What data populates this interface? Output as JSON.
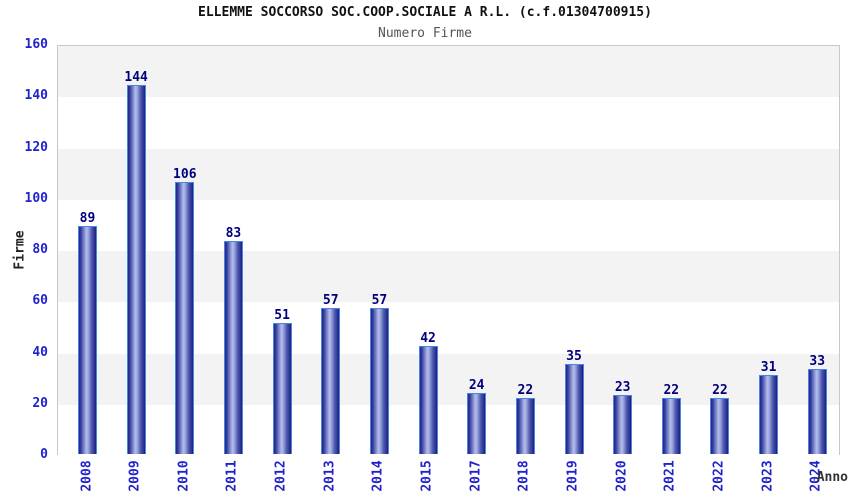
{
  "chart_data": {
    "type": "bar",
    "title": "ELLEMME SOCCORSO SOC.COOP.SOCIALE A R.L. (c.f.01304700915)",
    "subtitle": "Numero Firme",
    "xlabel": "Anno",
    "ylabel": "Firme",
    "categories": [
      "2008",
      "2009",
      "2010",
      "2011",
      "2012",
      "2013",
      "2014",
      "2015",
      "2017",
      "2018",
      "2019",
      "2020",
      "2021",
      "2022",
      "2023",
      "2024"
    ],
    "values": [
      89,
      144,
      106,
      83,
      51,
      57,
      57,
      42,
      24,
      22,
      35,
      23,
      22,
      22,
      31,
      33
    ],
    "ylim": [
      0,
      160
    ],
    "ytick_step": 20,
    "yticks": [
      0,
      20,
      40,
      60,
      80,
      100,
      120,
      140,
      160
    ],
    "grid": "alternating horizontal bands, gray band starts at top (160-140)",
    "legend": "none",
    "colors": {
      "bar_dark": "#23238c",
      "bar_light": "#b4bdea",
      "bar_outline": "#4688e0",
      "tick_label": "#2222cc",
      "value_label": "#00007d",
      "title": "#111111",
      "subtitle": "#555555",
      "band_gray": "#f3f3f3",
      "band_white": "#ffffff",
      "plot_border": "#c8c8c8",
      "axis_label": "#222222"
    }
  }
}
